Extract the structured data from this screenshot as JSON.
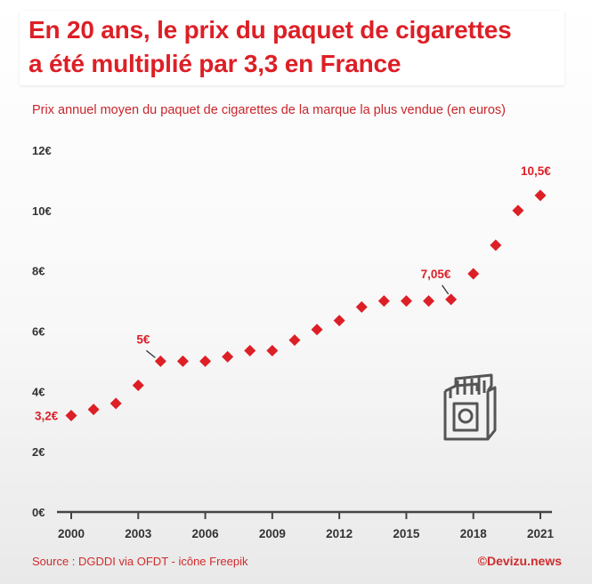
{
  "header": {
    "title_line1": "En 20 ans, le prix du paquet de cigarettes",
    "title_line2": "a été multiplié par 3,3 en France",
    "subtitle": "Prix annuel moyen du paquet de cigarettes de la marque la plus vendue (en euros)"
  },
  "footer": {
    "source": "Source : DGDDI via OFDT - icône Freepik",
    "credit": "©Devizu.news"
  },
  "icon": {
    "name": "cigarette-pack-icon"
  },
  "colors": {
    "accent": "#dd1f26",
    "axis": "#444444",
    "icon": "#555555"
  },
  "chart_data": {
    "type": "scatter",
    "title": "En 20 ans, le prix du paquet de cigarettes a été multiplié par 3,3 en France",
    "subtitle": "Prix annuel moyen du paquet de cigarettes de la marque la plus vendue (en euros)",
    "xlabel": "",
    "ylabel": "",
    "xlim": [
      2000,
      2021
    ],
    "ylim": [
      0,
      12
    ],
    "x_ticks": [
      2000,
      2003,
      2006,
      2009,
      2012,
      2015,
      2018,
      2021
    ],
    "y_ticks": [
      0,
      2,
      4,
      6,
      8,
      10,
      12
    ],
    "y_tick_labels": [
      "0€",
      "2€",
      "4€",
      "6€",
      "8€",
      "10€",
      "12€"
    ],
    "grid": false,
    "x": [
      2000,
      2001,
      2002,
      2003,
      2004,
      2005,
      2006,
      2007,
      2008,
      2009,
      2010,
      2011,
      2012,
      2013,
      2014,
      2015,
      2016,
      2017,
      2018,
      2019,
      2020,
      2021
    ],
    "values": [
      3.2,
      3.4,
      3.6,
      4.2,
      5.0,
      5.0,
      5.0,
      5.15,
      5.35,
      5.35,
      5.7,
      6.05,
      6.35,
      6.8,
      7.0,
      7.0,
      7.0,
      7.05,
      7.9,
      8.85,
      10.0,
      10.5
    ],
    "annotations": [
      {
        "x": 2000,
        "y": 3.2,
        "text": "3,2€"
      },
      {
        "x": 2004,
        "y": 5.0,
        "text": "5€"
      },
      {
        "x": 2017,
        "y": 7.05,
        "text": "7,05€"
      },
      {
        "x": 2021,
        "y": 10.5,
        "text": "10,5€"
      }
    ]
  }
}
